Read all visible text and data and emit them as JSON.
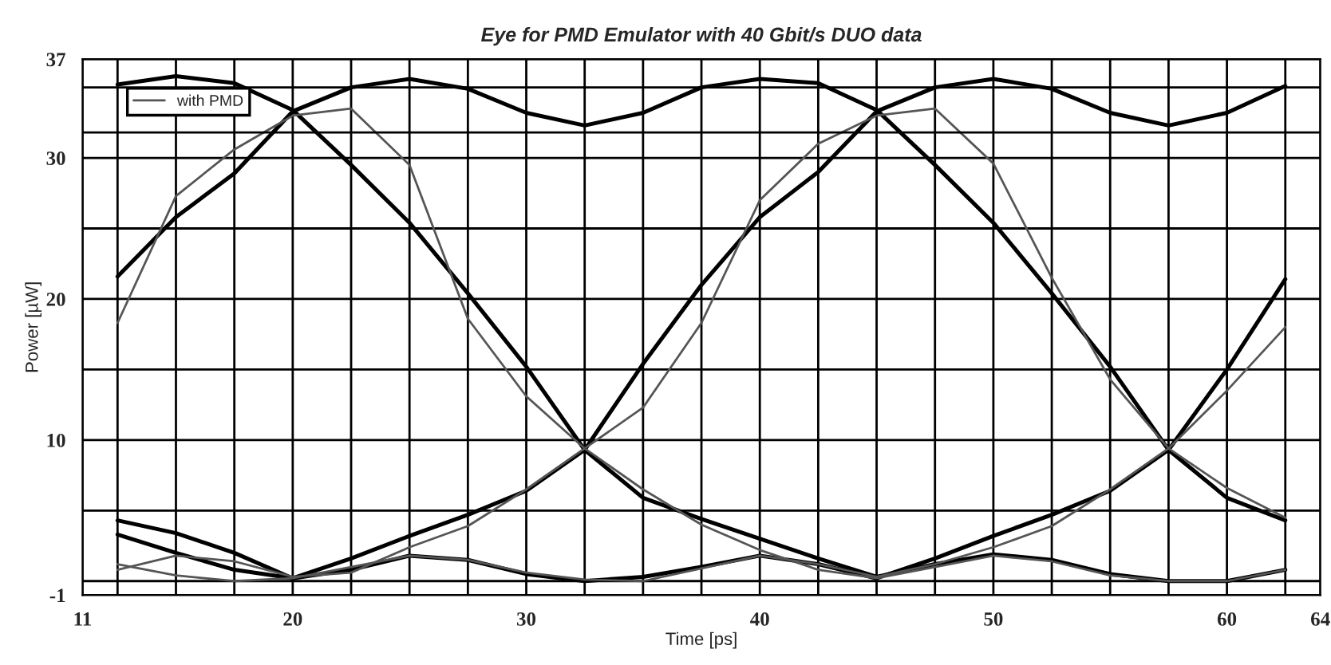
{
  "chart_data": {
    "type": "line",
    "title": "Eye for PMD Emulator with 40 Gbit/s DUO data",
    "xlabel": "Time [ps]",
    "ylabel": "Power [µW]",
    "x": [
      12.5,
      15,
      17.5,
      20,
      22.5,
      25,
      27.5,
      30,
      32.5,
      35,
      37.5,
      40,
      42.5,
      45,
      47.5,
      50,
      52.5,
      55,
      57.5,
      60,
      62.5
    ],
    "series": [
      {
        "color": "#000000",
        "values": [
          35.2,
          35.8,
          35.3,
          33.4,
          29.5,
          25.4,
          20.4,
          15.2,
          9.3,
          5.9,
          4.4,
          3.0,
          1.6,
          0.3,
          1.2,
          1.9,
          1.5,
          0.5,
          0.0,
          0.0,
          0.8
        ]
      },
      {
        "color": "#000000",
        "values": [
          21.6,
          25.8,
          28.9,
          33.3,
          35.0,
          35.6,
          34.9,
          33.2,
          32.3,
          33.2,
          35.0,
          35.6,
          35.3,
          33.4,
          29.5,
          25.4,
          20.4,
          15.2,
          9.3,
          5.9,
          4.3
        ]
      },
      {
        "color": "#000000",
        "values": [
          4.3,
          3.4,
          2.0,
          0.2,
          1.6,
          3.2,
          4.7,
          6.4,
          9.3,
          15.4,
          21.0,
          25.8,
          29.0,
          33.3,
          35.0,
          35.6,
          34.9,
          33.2,
          32.3,
          33.2,
          35.1
        ]
      },
      {
        "color": "#000000",
        "values": [
          3.3,
          2.0,
          0.8,
          0.2,
          0.8,
          1.8,
          1.5,
          0.5,
          0.0,
          0.3,
          1.0,
          1.8,
          1.2,
          0.2,
          1.6,
          3.2,
          4.7,
          6.4,
          9.3,
          15.0,
          21.4
        ]
      },
      {
        "name": "with PMD",
        "color": "#555555",
        "values": [
          18.3,
          27.3,
          30.6,
          33.0,
          33.5,
          29.5,
          18.6,
          13.1,
          9.4,
          6.5,
          4.0,
          2.2,
          0.8,
          0.2,
          1.0,
          1.8,
          1.4,
          0.4,
          0.0,
          0.0,
          0.8
        ]
      },
      {
        "color": "#555555",
        "values": [
          0.8,
          1.8,
          1.4,
          0.3,
          0.6,
          2.4,
          3.9,
          6.5,
          9.4,
          12.3,
          18.3,
          27.0,
          31.0,
          33.0,
          33.5,
          29.6,
          21.5,
          14.3,
          9.4,
          6.6,
          4.5
        ]
      },
      {
        "color": "#555555",
        "values": [
          1.2,
          0.4,
          0.0,
          0.2,
          1.0,
          1.8,
          1.5,
          0.6,
          0.1,
          0.0,
          0.9,
          1.8,
          1.2,
          0.3,
          1.2,
          2.4,
          3.9,
          6.5,
          9.4,
          13.5,
          18.0
        ]
      }
    ],
    "xlim": [
      11,
      64
    ],
    "xticks": [
      11,
      {
        "value": 12.5,
        "label": null
      },
      {
        "value": 15,
        "label": null
      },
      {
        "value": 17.5,
        "label": null
      },
      20,
      {
        "value": 22.5,
        "label": null
      },
      {
        "value": 25,
        "label": null
      },
      {
        "value": 27.5,
        "label": null
      },
      30,
      {
        "value": 32.5,
        "label": null
      },
      {
        "value": 35,
        "label": null
      },
      {
        "value": 37.5,
        "label": null
      },
      40,
      {
        "value": 42.5,
        "label": null
      },
      {
        "value": 45,
        "label": null
      },
      {
        "value": 47.5,
        "label": null
      },
      50,
      {
        "value": 52.5,
        "label": null
      },
      {
        "value": 55,
        "label": null
      },
      {
        "value": 57.5,
        "label": null
      },
      60,
      {
        "value": 62.5,
        "label": null
      },
      64
    ],
    "ylim": [
      -1,
      37
    ],
    "yticks": [
      -1,
      {
        "value": 0,
        "label": null
      },
      {
        "value": 5,
        "label": null
      },
      10,
      {
        "value": 15,
        "label": null
      },
      20,
      {
        "value": 25,
        "label": null
      },
      30,
      {
        "value": 35,
        "label": null
      },
      37
    ],
    "ref_lines": [
      {
        "axis": "y",
        "value": 31.8,
        "label": null,
        "color": "#000000"
      }
    ],
    "grid": true,
    "legend": "top left",
    "line_style": "solid",
    "marker": "none"
  }
}
